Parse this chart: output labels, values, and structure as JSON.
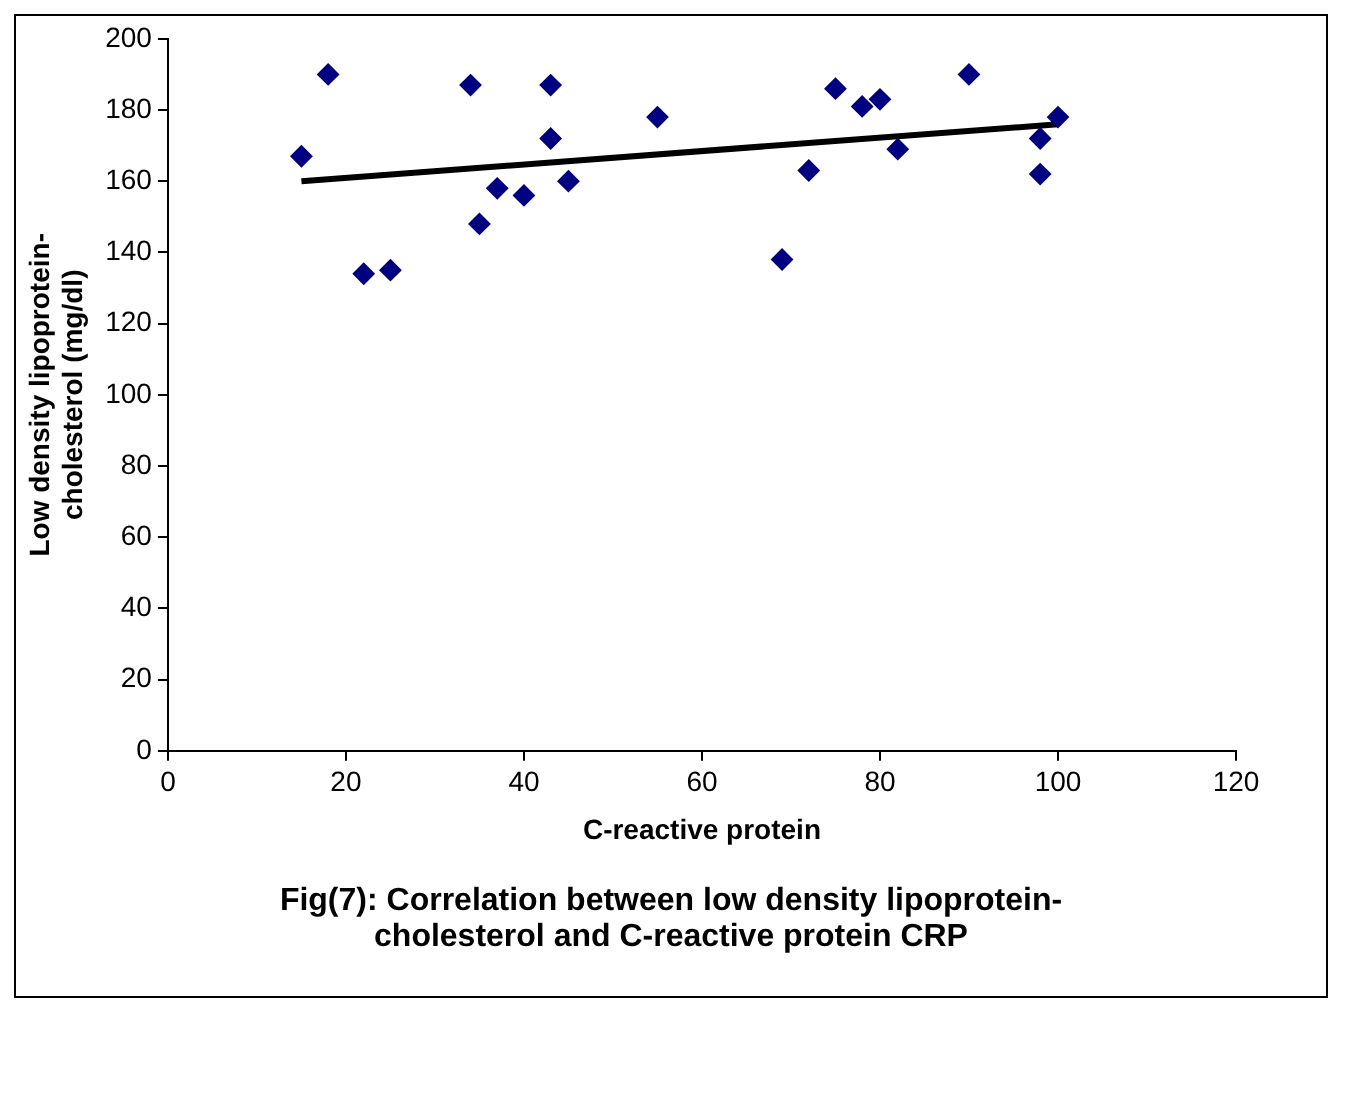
{
  "chart_data": {
    "type": "scatter",
    "title": "Fig(7): Correlation between low density lipoprotein-cholesterol and C-reactive protein CRP",
    "xlabel": "C-reactive protein",
    "ylabel": "Low density lipoprotein-cholesterol (mg/dl)",
    "xlim": [
      0,
      120
    ],
    "xticks": [
      0,
      20,
      40,
      60,
      80,
      100,
      120
    ],
    "ylim": [
      0,
      200
    ],
    "yticks": [
      0,
      20,
      40,
      60,
      80,
      100,
      120,
      140,
      160,
      180,
      200
    ],
    "grid": false,
    "legend": false,
    "marker": "diamond",
    "series": [
      {
        "color": "#000080",
        "x": [
          15,
          18,
          22,
          25,
          34,
          35,
          37,
          40,
          43,
          43,
          45,
          55,
          69,
          72,
          75,
          78,
          80,
          82,
          90,
          98,
          98,
          100
        ],
        "values": [
          167,
          190,
          134,
          135,
          187,
          148,
          158,
          156,
          187,
          172,
          160,
          178,
          138,
          163,
          186,
          181,
          183,
          169,
          190,
          172,
          162,
          178
        ]
      },
      {
        "type": "line",
        "marker": "none",
        "color": "#000000",
        "line_style": "solid",
        "x": [
          15,
          100
        ],
        "values": [
          160,
          176
        ]
      }
    ]
  }
}
